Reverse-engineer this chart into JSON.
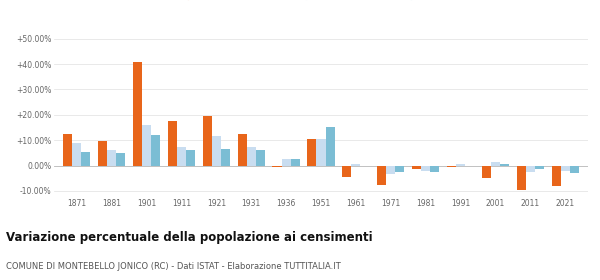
{
  "years": [
    1871,
    1881,
    1901,
    1911,
    1921,
    1931,
    1936,
    1951,
    1961,
    1971,
    1981,
    1991,
    2001,
    2011,
    2021
  ],
  "montebello": [
    12.5,
    9.5,
    41.0,
    17.5,
    19.5,
    12.5,
    -0.5,
    10.5,
    -4.5,
    -7.5,
    -1.5,
    -0.5,
    -5.0,
    -9.5,
    -8.0
  ],
  "provincia": [
    9.0,
    6.0,
    16.0,
    7.5,
    11.5,
    7.5,
    2.5,
    10.5,
    0.5,
    -3.5,
    -2.0,
    0.5,
    1.5,
    -2.5,
    -2.0
  ],
  "calabria": [
    5.5,
    5.0,
    12.0,
    6.0,
    6.5,
    6.0,
    2.5,
    15.0,
    0.0,
    -2.5,
    -2.5,
    0.0,
    0.5,
    -1.5,
    -3.0
  ],
  "color_montebello": "#e8651a",
  "color_provincia": "#c9ddf0",
  "color_calabria": "#7bbdd4",
  "title": "Variazione percentuale della popolazione ai censimenti",
  "subtitle": "COMUNE DI MONTEBELLO JONICO (RC) - Dati ISTAT - Elaborazione TUTTITALIA.IT",
  "ylim": [
    -12,
    52
  ],
  "yticks": [
    -10,
    0,
    10,
    20,
    30,
    40,
    50
  ],
  "ytick_labels": [
    "-10.00%",
    "0.00%",
    "+10.00%",
    "+20.00%",
    "+30.00%",
    "+40.00%",
    "+50.00%"
  ],
  "background_color": "#ffffff",
  "grid_color": "#e0e0e0"
}
